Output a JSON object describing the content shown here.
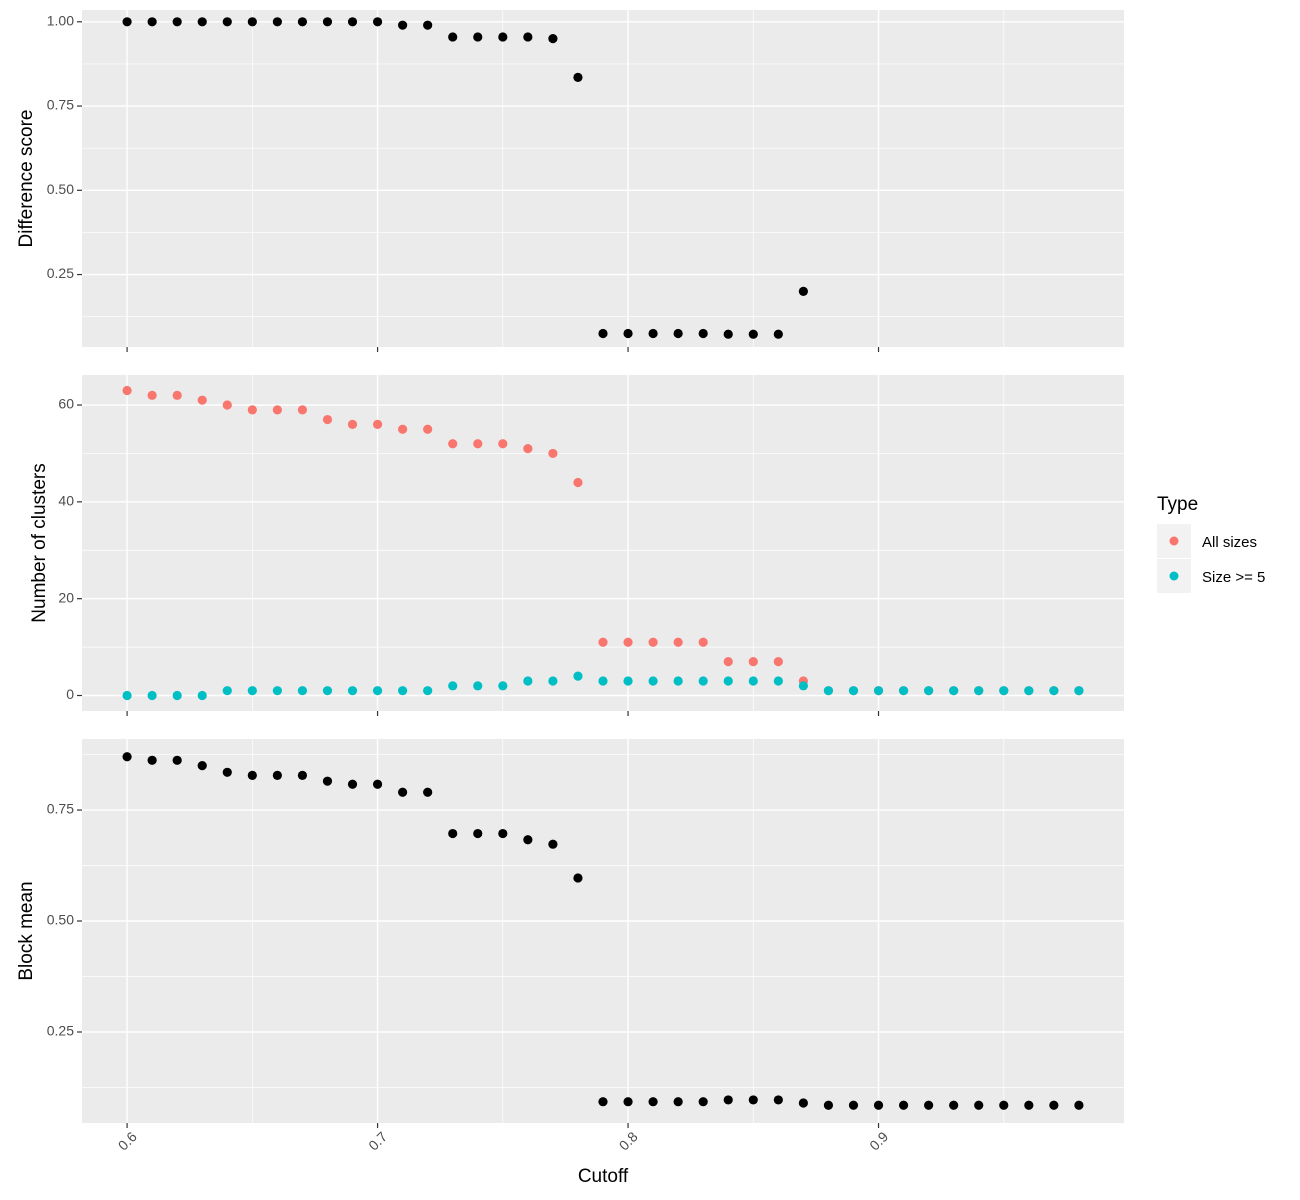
{
  "chart_data": [
    {
      "type": "scatter",
      "ylabel": "Difference score",
      "xlabel": "",
      "xlim": [
        0.582,
        0.998
      ],
      "ylim": [
        0.035,
        1.035
      ],
      "x_ticks": [
        "0.6",
        "0.7",
        "0.8",
        "0.9"
      ],
      "x_tick_values": [
        0.6,
        0.7,
        0.8,
        0.9
      ],
      "x_tick_labels_shown": false,
      "y_ticks": [
        "0.25",
        "0.50",
        "0.75",
        "1.00"
      ],
      "y_tick_values": [
        0.25,
        0.5,
        0.75,
        1.0
      ],
      "grid": true,
      "series": [
        {
          "color": "#000000",
          "x": [
            0.6,
            0.61,
            0.62,
            0.63,
            0.64,
            0.65,
            0.66,
            0.67,
            0.68,
            0.69,
            0.7,
            0.71,
            0.72,
            0.73,
            0.74,
            0.75,
            0.76,
            0.77,
            0.78,
            0.79,
            0.8,
            0.81,
            0.82,
            0.83,
            0.84,
            0.85,
            0.86,
            0.87
          ],
          "y": [
            1.0,
            1.0,
            1.0,
            1.0,
            1.0,
            1.0,
            1.0,
            1.0,
            1.0,
            1.0,
            1.0,
            0.99,
            0.99,
            0.955,
            0.955,
            0.955,
            0.955,
            0.95,
            0.835,
            0.075,
            0.075,
            0.075,
            0.075,
            0.075,
            0.073,
            0.073,
            0.073,
            0.2
          ]
        }
      ]
    },
    {
      "type": "scatter",
      "ylabel": "Number of clusters",
      "xlabel": "",
      "xlim": [
        0.582,
        0.998
      ],
      "ylim": [
        -3.2,
        66.2
      ],
      "x_ticks": [
        "0.6",
        "0.7",
        "0.8",
        "0.9"
      ],
      "x_tick_values": [
        0.6,
        0.7,
        0.8,
        0.9
      ],
      "x_tick_labels_shown": false,
      "y_ticks": [
        "0",
        "20",
        "40",
        "60"
      ],
      "y_tick_values": [
        0,
        20,
        40,
        60
      ],
      "grid": true,
      "legend": {
        "title": "Type",
        "position": "right"
      },
      "series": [
        {
          "name": "All sizes",
          "color": "#F8766D",
          "x": [
            0.6,
            0.61,
            0.62,
            0.63,
            0.64,
            0.65,
            0.66,
            0.67,
            0.68,
            0.69,
            0.7,
            0.71,
            0.72,
            0.73,
            0.74,
            0.75,
            0.76,
            0.77,
            0.78,
            0.79,
            0.8,
            0.81,
            0.82,
            0.83,
            0.84,
            0.85,
            0.86,
            0.87,
            0.88,
            0.89,
            0.9,
            0.91,
            0.92,
            0.93,
            0.94,
            0.95,
            0.96,
            0.97,
            0.98
          ],
          "y": [
            63,
            62,
            62,
            61,
            60,
            59,
            59,
            59,
            57,
            56,
            56,
            55,
            55,
            52,
            52,
            52,
            51,
            50,
            44,
            11,
            11,
            11,
            11,
            11,
            7,
            7,
            7,
            3,
            1,
            1,
            1,
            1,
            1,
            1,
            1,
            1,
            1,
            1,
            1
          ]
        },
        {
          "name": "Size >= 5",
          "color": "#00BFC4",
          "x": [
            0.6,
            0.61,
            0.62,
            0.63,
            0.64,
            0.65,
            0.66,
            0.67,
            0.68,
            0.69,
            0.7,
            0.71,
            0.72,
            0.73,
            0.74,
            0.75,
            0.76,
            0.77,
            0.78,
            0.79,
            0.8,
            0.81,
            0.82,
            0.83,
            0.84,
            0.85,
            0.86,
            0.87,
            0.88,
            0.89,
            0.9,
            0.91,
            0.92,
            0.93,
            0.94,
            0.95,
            0.96,
            0.97,
            0.98
          ],
          "y": [
            0,
            0,
            0,
            0,
            1,
            1,
            1,
            1,
            1,
            1,
            1,
            1,
            1,
            2,
            2,
            2,
            3,
            3,
            4,
            3,
            3,
            3,
            3,
            3,
            3,
            3,
            3,
            2,
            1,
            1,
            1,
            1,
            1,
            1,
            1,
            1,
            1,
            1,
            1
          ]
        }
      ]
    },
    {
      "type": "scatter",
      "ylabel": "Block mean",
      "xlabel": "Cutoff",
      "xlim": [
        0.582,
        0.998
      ],
      "ylim": [
        0.045,
        0.91
      ],
      "x_ticks": [
        "0.6",
        "0.7",
        "0.8",
        "0.9"
      ],
      "x_tick_values": [
        0.6,
        0.7,
        0.8,
        0.9
      ],
      "x_tick_labels_shown": true,
      "x_tick_rotation": -45,
      "y_ticks": [
        "0.25",
        "0.50",
        "0.75"
      ],
      "y_tick_values": [
        0.25,
        0.5,
        0.75
      ],
      "grid": true,
      "series": [
        {
          "color": "#000000",
          "x": [
            0.6,
            0.61,
            0.62,
            0.63,
            0.64,
            0.65,
            0.66,
            0.67,
            0.68,
            0.69,
            0.7,
            0.71,
            0.72,
            0.73,
            0.74,
            0.75,
            0.76,
            0.77,
            0.78,
            0.79,
            0.8,
            0.81,
            0.82,
            0.83,
            0.84,
            0.85,
            0.86,
            0.87,
            0.88,
            0.89,
            0.9,
            0.91,
            0.92,
            0.93,
            0.94,
            0.95,
            0.96,
            0.97,
            0.98
          ],
          "y": [
            0.87,
            0.862,
            0.862,
            0.85,
            0.835,
            0.828,
            0.828,
            0.828,
            0.815,
            0.808,
            0.808,
            0.79,
            0.79,
            0.697,
            0.697,
            0.697,
            0.683,
            0.673,
            0.597,
            0.093,
            0.093,
            0.093,
            0.093,
            0.093,
            0.097,
            0.097,
            0.097,
            0.09,
            0.085,
            0.085,
            0.085,
            0.085,
            0.085,
            0.085,
            0.085,
            0.085,
            0.085,
            0.085,
            0.085
          ]
        }
      ]
    }
  ]
}
